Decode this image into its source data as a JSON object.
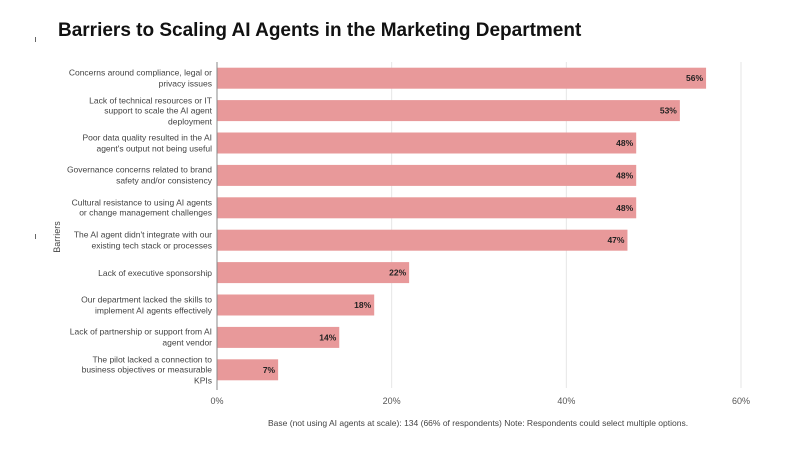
{
  "chart_data": {
    "type": "bar",
    "orientation": "horizontal",
    "title": "Barriers to Scaling AI Agents in the Marketing Department",
    "ylabel": "Barriers",
    "xlabel": "",
    "xlim": [
      0,
      60
    ],
    "xticks": [
      "0%",
      "20%",
      "40%",
      "60%"
    ],
    "grid": true,
    "bar_color": "#e8999a",
    "categories": [
      "Concerns around compliance, legal or privacy issues",
      "Lack of technical resources or IT support to scale the AI agent deployment",
      "Poor data quality resulted in the AI agent's output not being useful",
      "Governance concerns related to brand safety and/or consistency",
      "Cultural resistance to using AI agents or change management challenges",
      "The AI agent didn't integrate with our existing tech stack or processes",
      "Lack of executive sponsorship",
      "Our department lacked the skills to implement AI agents effectively",
      "Lack of partnership or support from AI agent vendor",
      "The pilot lacked a connection to business objectives or measurable KPIs"
    ],
    "values": [
      56,
      53,
      48,
      48,
      48,
      47,
      22,
      18,
      14,
      7
    ],
    "data_labels": [
      "56%",
      "53%",
      "48%",
      "48%",
      "48%",
      "47%",
      "22%",
      "18%",
      "14%",
      "7%"
    ],
    "note": "Base (not using AI agents at scale): 134 (66% of respondents) Note: Respondents could select multiple options."
  }
}
